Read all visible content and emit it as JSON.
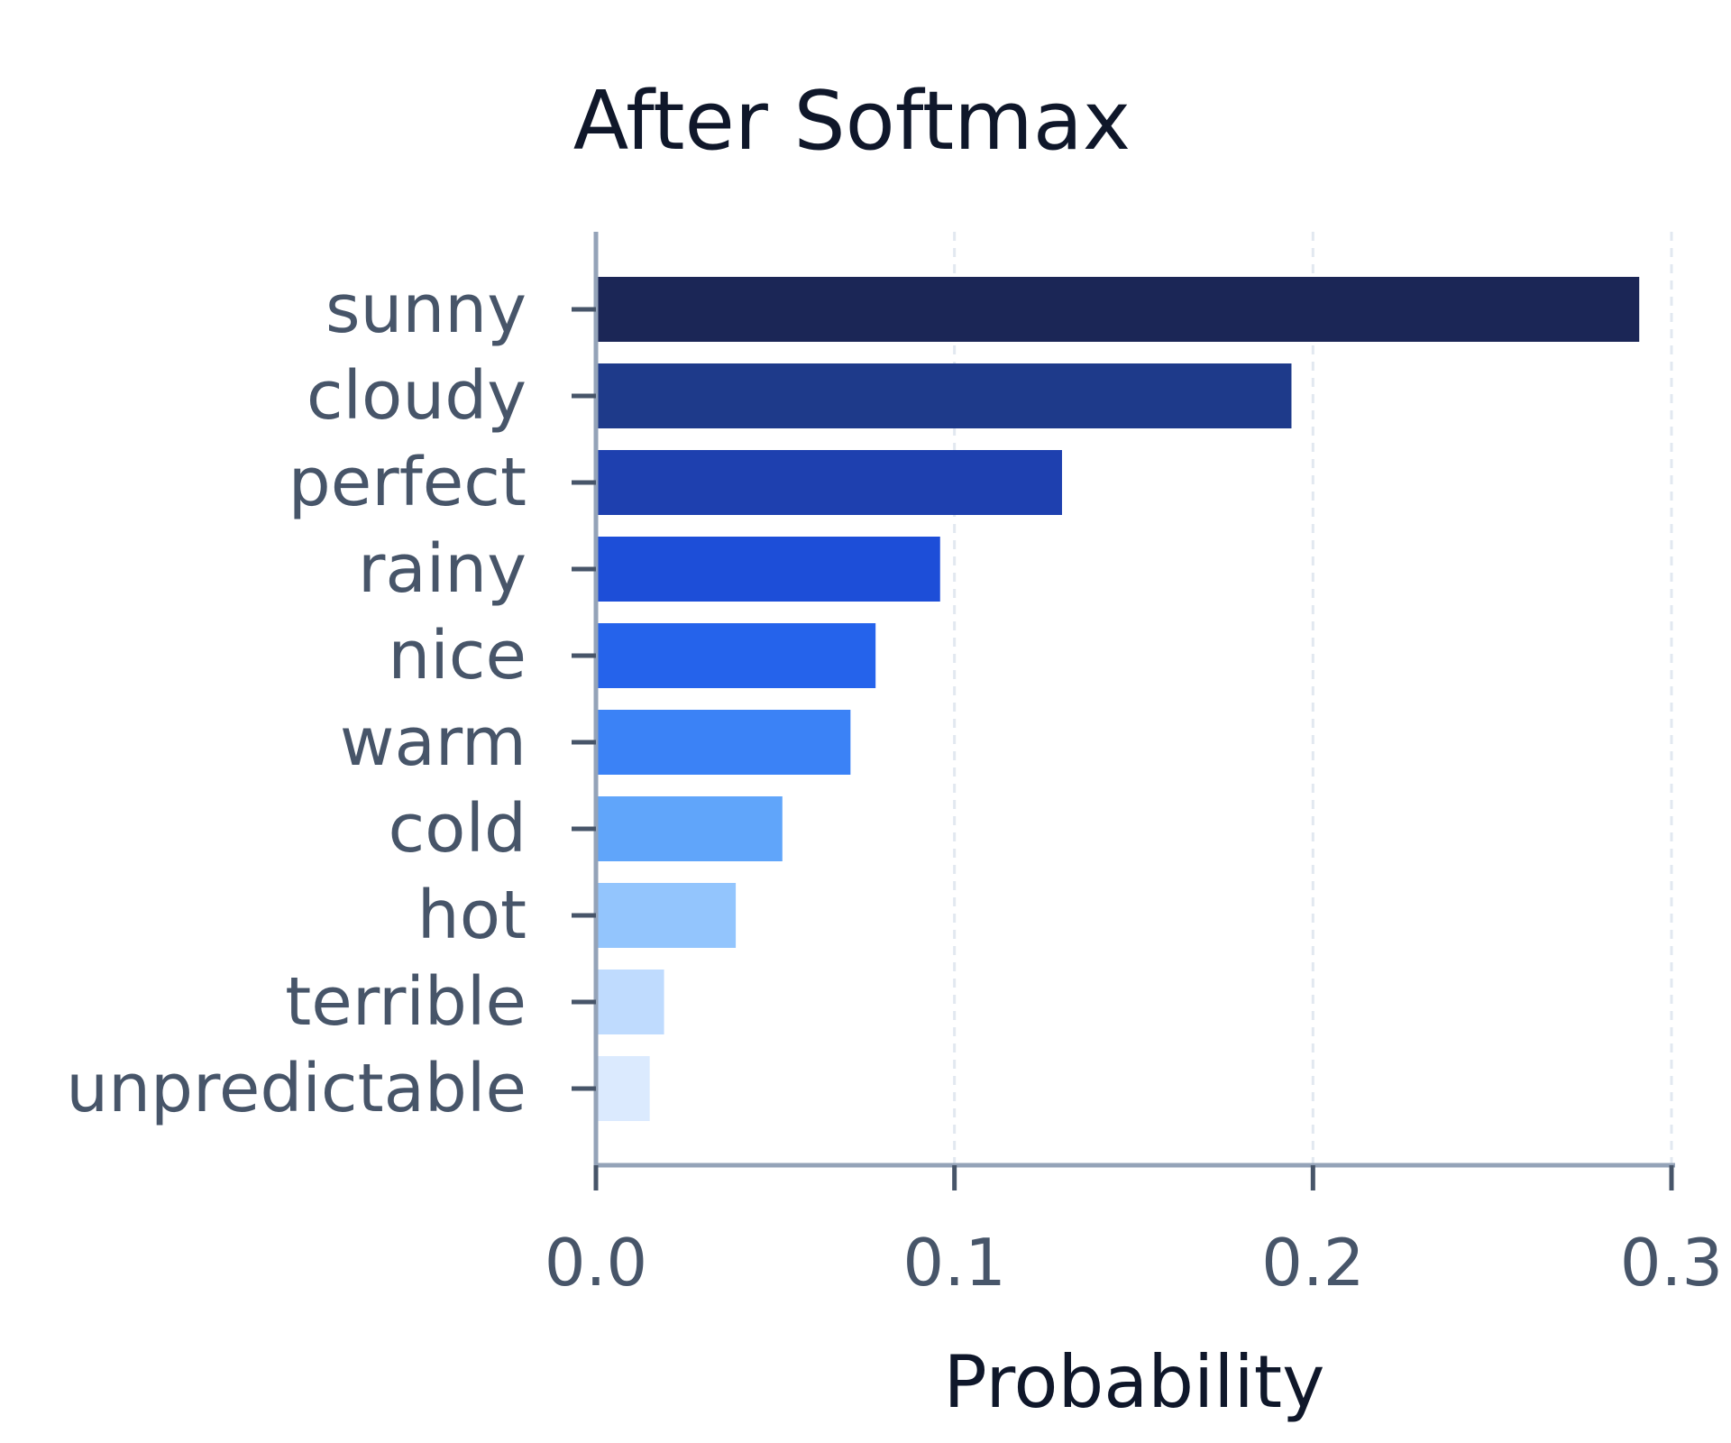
{
  "chart_data": {
    "type": "bar",
    "orientation": "horizontal",
    "title": "After Softmax",
    "xlabel": "Probability",
    "ylabel": "",
    "categories": [
      "sunny",
      "cloudy",
      "perfect",
      "rainy",
      "nice",
      "warm",
      "cold",
      "hot",
      "terrible",
      "unpredictable"
    ],
    "values": [
      0.291,
      0.194,
      0.13,
      0.096,
      0.078,
      0.071,
      0.052,
      0.039,
      0.019,
      0.015
    ],
    "colors": [
      "#1b2656",
      "#1e3a8a",
      "#1e40af",
      "#1d4ed8",
      "#2563eb",
      "#3b82f6",
      "#60a5fa",
      "#93c5fd",
      "#bfdbfe",
      "#dbeafe"
    ],
    "xlim": [
      0,
      0.3
    ],
    "xticks": [
      0.0,
      0.1,
      0.2,
      0.3
    ],
    "xtick_labels": [
      "0.0",
      "0.1",
      "0.2",
      "0.3"
    ],
    "grid": "vertical dashed",
    "legend": "none"
  }
}
